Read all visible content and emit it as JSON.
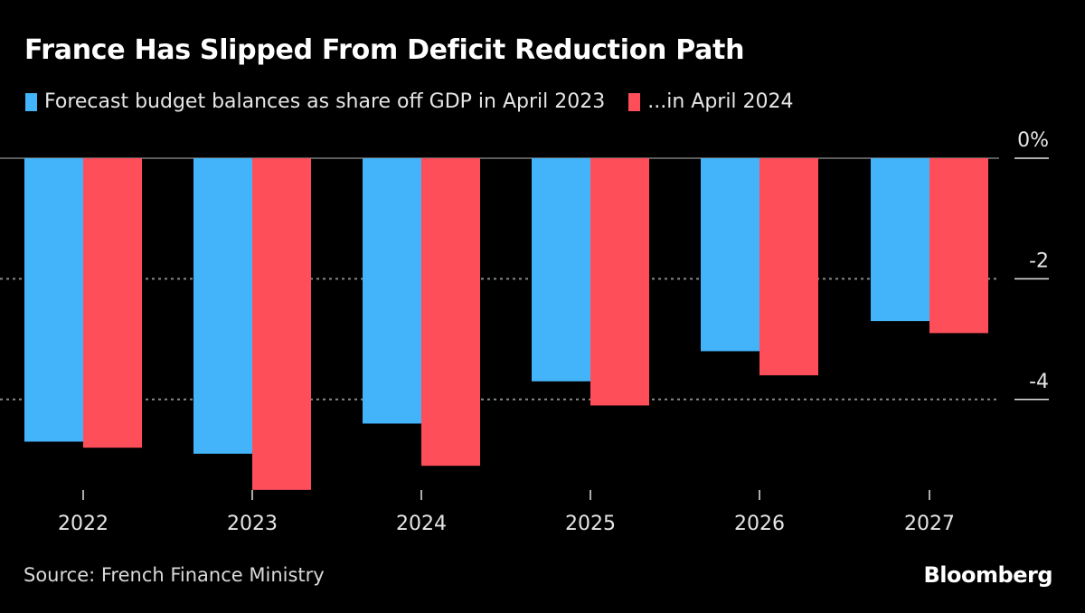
{
  "title": "France Has Slipped From Deficit Reduction Path",
  "source": "Source: French Finance Ministry",
  "brand": "Bloomberg",
  "colors": {
    "series1": "#44b4fa",
    "series2": "#fe4e5a",
    "background": "#000000"
  },
  "chart_data": {
    "type": "bar",
    "title": "France Has Slipped From Deficit Reduction Path",
    "xlabel": "",
    "ylabel": "",
    "categories": [
      "2022",
      "2023",
      "2024",
      "2025",
      "2026",
      "2027"
    ],
    "series": [
      {
        "name": "Forecast budget balances as share off GDP in April 2023",
        "color": "#44b4fa",
        "values": [
          -4.7,
          -4.9,
          -4.4,
          -3.7,
          -3.2,
          -2.7
        ]
      },
      {
        "name": "...in April 2024",
        "color": "#fe4e5a",
        "values": [
          -4.8,
          -5.5,
          -5.1,
          -4.1,
          -3.6,
          -2.9
        ]
      }
    ],
    "yticks": [
      {
        "value": 0,
        "label": "0%"
      },
      {
        "value": -2,
        "label": "-2"
      },
      {
        "value": -4,
        "label": "-4"
      }
    ],
    "ylim": [
      -5.5,
      0
    ],
    "grid": true,
    "legend_position": "top-left"
  }
}
